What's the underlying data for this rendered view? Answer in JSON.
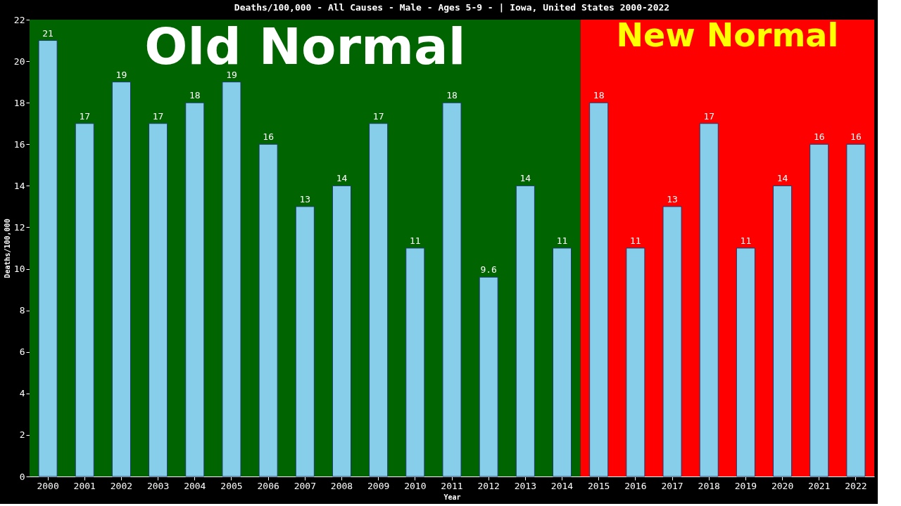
{
  "chart_data": {
    "type": "bar",
    "title": "Deaths/100,000 - All Causes - Male - Ages 5-9 -  | Iowa, United States 2000-2022",
    "xlabel": "Year",
    "ylabel": "Deaths/100,000",
    "categories": [
      "2000",
      "2001",
      "2002",
      "2003",
      "2004",
      "2005",
      "2006",
      "2007",
      "2008",
      "2009",
      "2010",
      "2011",
      "2012",
      "2013",
      "2014",
      "2015",
      "2016",
      "2017",
      "2018",
      "2019",
      "2020",
      "2021",
      "2022"
    ],
    "values": [
      21,
      17,
      19,
      17,
      18,
      19,
      16,
      13,
      14,
      17,
      11,
      18,
      9.6,
      14,
      11,
      18,
      11,
      13,
      17,
      11,
      14,
      16,
      16
    ],
    "color": "#87ceeb",
    "ylim": [
      0,
      22
    ],
    "yticks": [
      0,
      2,
      4,
      6,
      8,
      10,
      12,
      14,
      16,
      18,
      20,
      22
    ],
    "grid": false,
    "data_labels": true,
    "bands": [
      {
        "axis": "x",
        "from": "2000",
        "to": "2014",
        "label": "Old Normal",
        "color": "#006400"
      },
      {
        "axis": "x",
        "from": "2015",
        "to": "2022",
        "label": "New Normal",
        "color": "#ff0000"
      }
    ]
  }
}
